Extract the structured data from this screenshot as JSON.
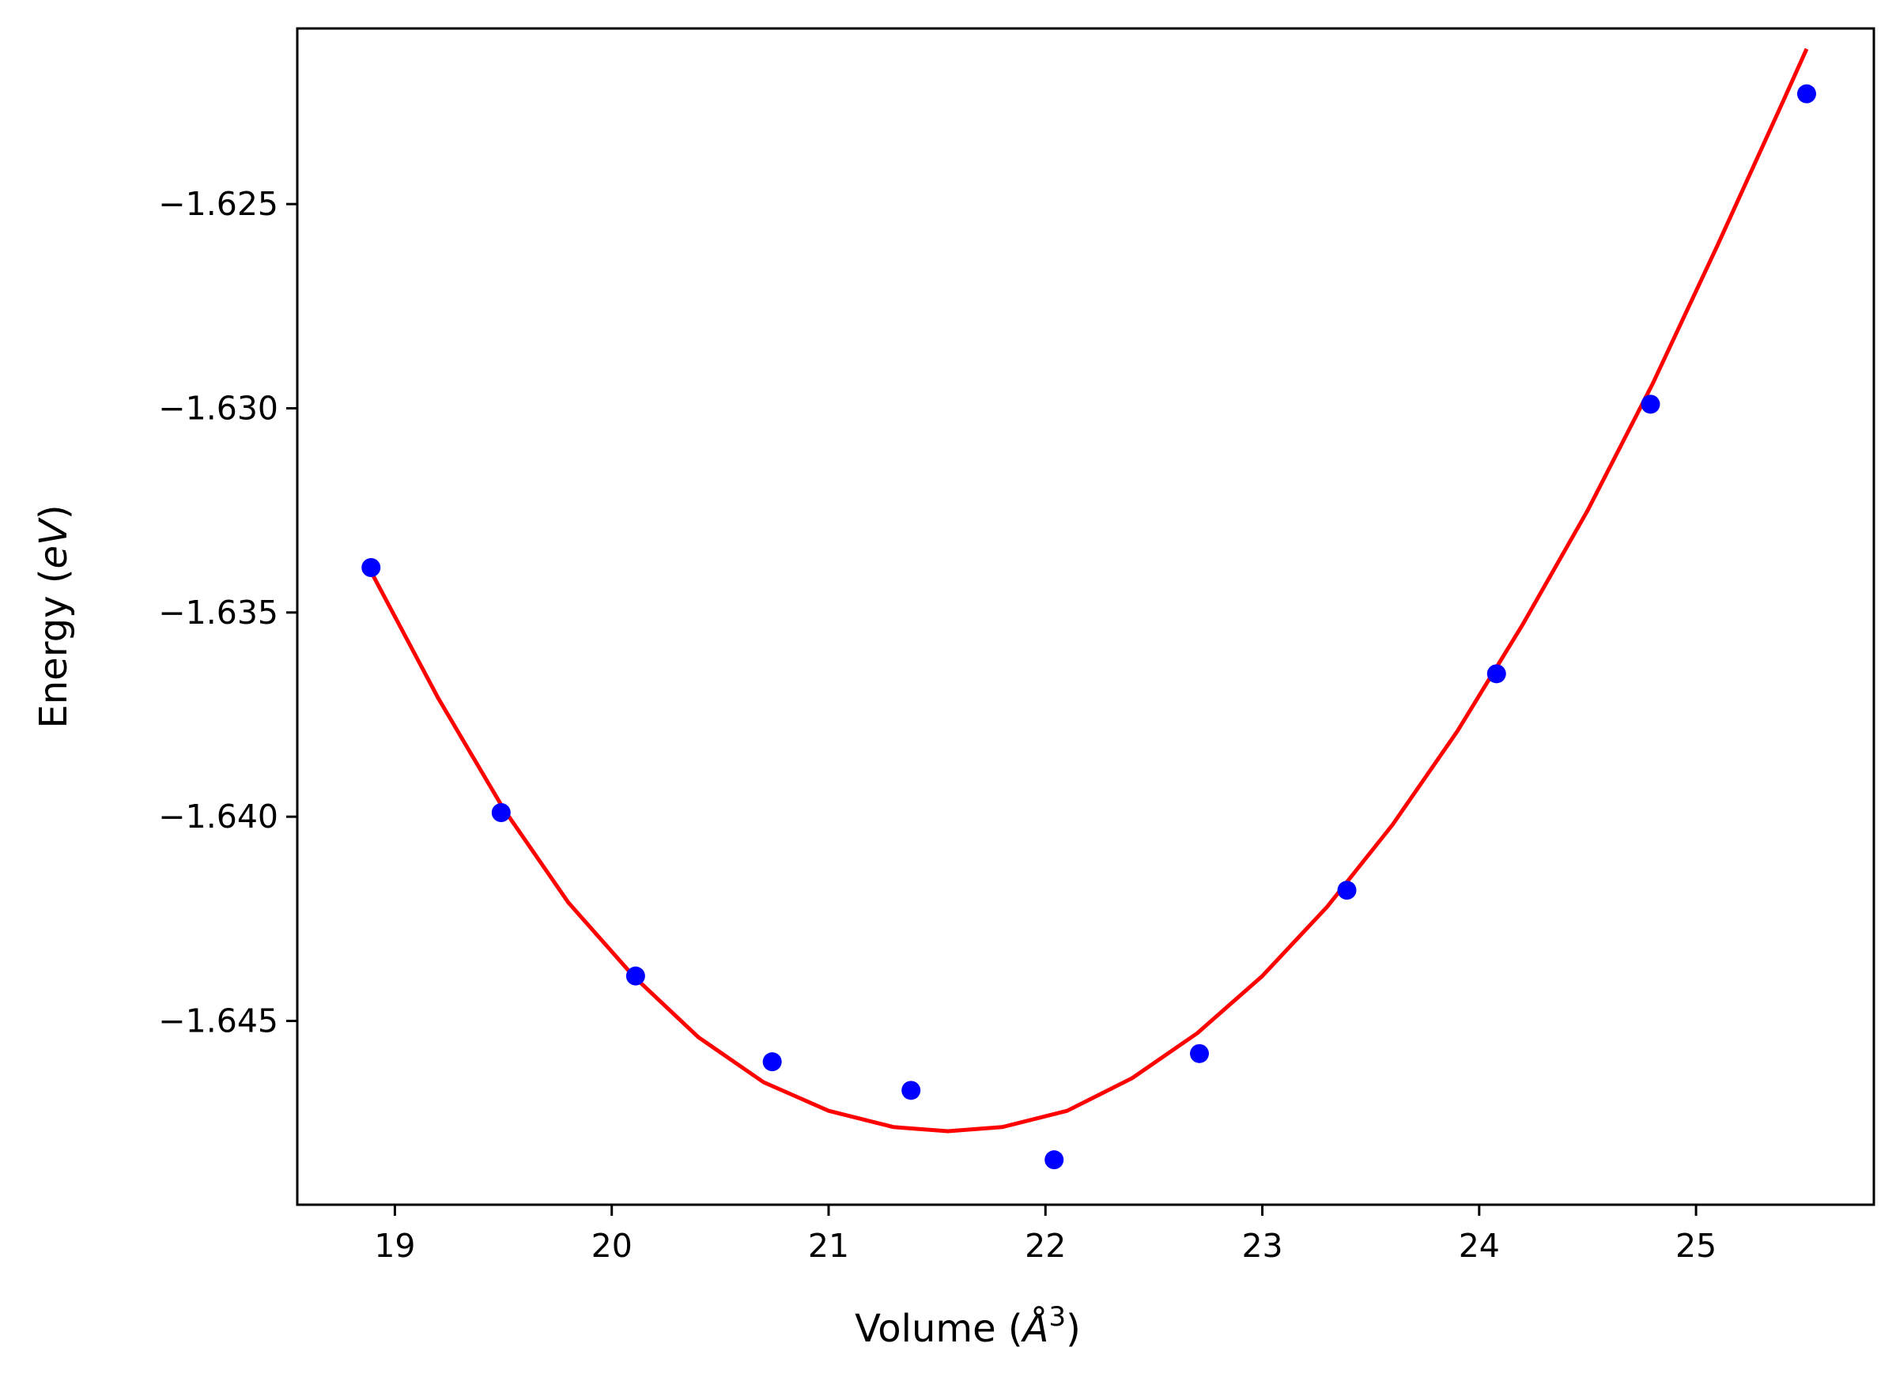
{
  "chart_data": {
    "type": "scatter",
    "xlabel": "Volume (",
    "xlabel_unit_base": "Å",
    "xlabel_unit_exp": "3",
    "xlabel_close": ")",
    "ylabel": "Energy (",
    "ylabel_unit": "eV",
    "ylabel_close": ")",
    "xlim": [
      18.55,
      25.82
    ],
    "ylim": [
      -1.6495,
      -1.6207
    ],
    "xticks": [
      19,
      20,
      21,
      22,
      23,
      24,
      25
    ],
    "xtick_labels": [
      "19",
      "20",
      "21",
      "22",
      "23",
      "24",
      "25"
    ],
    "yticks": [
      -1.625,
      -1.63,
      -1.635,
      -1.64,
      -1.645
    ],
    "ytick_labels": [
      "−1.625",
      "−1.630",
      "−1.635",
      "−1.640",
      "−1.645"
    ],
    "grid": false,
    "series": [
      {
        "kind": "points",
        "color": "#0000ff",
        "x": [
          18.89,
          19.49,
          20.11,
          20.74,
          21.38,
          22.04,
          22.71,
          23.39,
          24.08,
          24.79,
          25.51
        ],
        "y": [
          -1.6339,
          -1.6399,
          -1.6439,
          -1.646,
          -1.6467,
          -1.6484,
          -1.6458,
          -1.6418,
          -1.6365,
          -1.6299,
          -1.6223
        ]
      },
      {
        "kind": "fit-curve",
        "color": "#ff0000",
        "x": [
          18.89,
          19.2,
          19.5,
          19.8,
          20.1,
          20.4,
          20.7,
          21.0,
          21.3,
          21.55,
          21.8,
          22.1,
          22.4,
          22.7,
          23.0,
          23.3,
          23.6,
          23.9,
          24.2,
          24.5,
          24.8,
          25.1,
          25.4,
          25.51
        ],
        "y": [
          -1.634,
          -1.6371,
          -1.6398,
          -1.6421,
          -1.6439,
          -1.6454,
          -1.6465,
          -1.6472,
          -1.6476,
          -1.6477,
          -1.6476,
          -1.6472,
          -1.6464,
          -1.6453,
          -1.6439,
          -1.6422,
          -1.6402,
          -1.6379,
          -1.6353,
          -1.6325,
          -1.6294,
          -1.626,
          -1.6225,
          -1.6212
        ]
      }
    ]
  }
}
